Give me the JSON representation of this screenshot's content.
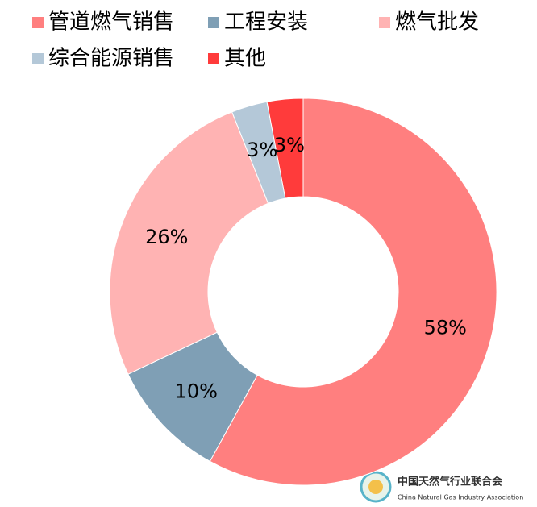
{
  "chart_data": {
    "type": "donut",
    "categories": [
      "管道燃气销售",
      "工程安装",
      "燃气批发",
      "综合能源销售",
      "其他"
    ],
    "values": [
      58,
      10,
      26,
      3,
      3
    ],
    "value_labels": [
      "58%",
      "10%",
      "26%",
      "3%",
      "3%"
    ],
    "colors": [
      "#ff7f7f",
      "#7f9fb5",
      "#ffb3b3",
      "#b4c8d8",
      "#ff3b3b"
    ],
    "legend": "top"
  },
  "logo": {
    "name": "中国天然气行业联合会",
    "name_en": "China Natural Gas Industry Association"
  }
}
